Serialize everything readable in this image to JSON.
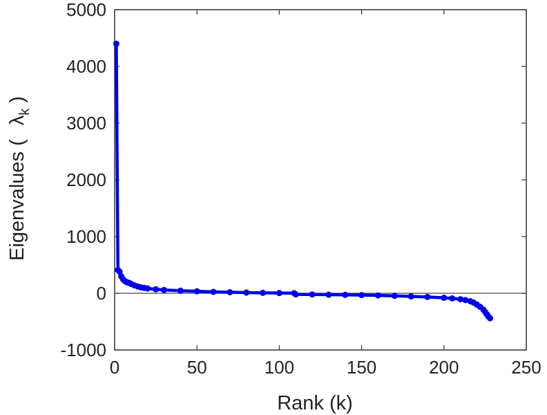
{
  "chart_data": {
    "type": "line",
    "xlabel": "Rank (k)",
    "ylabel": {
      "prefix": "Eigenvalues (",
      "symbol": "λ",
      "subscript": "k",
      "suffix": ")"
    },
    "xlim": [
      0,
      250
    ],
    "ylim": [
      -1000,
      5000
    ],
    "xticks": [
      0,
      50,
      100,
      150,
      200,
      250
    ],
    "yticks": [
      -1000,
      0,
      1000,
      2000,
      3000,
      4000,
      5000
    ],
    "zero_line": true,
    "grid": false,
    "series": [
      {
        "color": "#0000ee",
        "marker": "circle",
        "x": [
          1,
          2,
          3,
          4,
          5,
          6,
          7,
          8,
          9,
          10,
          12,
          14,
          16,
          18,
          20,
          25,
          30,
          40,
          50,
          60,
          70,
          80,
          90,
          100,
          109,
          110,
          120,
          130,
          140,
          150,
          160,
          170,
          180,
          190,
          200,
          205,
          210,
          213,
          216,
          218,
          220,
          222,
          224,
          225,
          226,
          227,
          228
        ],
        "y": [
          4400,
          410,
          380,
          300,
          250,
          220,
          200,
          190,
          180,
          165,
          140,
          120,
          105,
          95,
          85,
          70,
          58,
          45,
          35,
          25,
          18,
          12,
          8,
          4,
          2,
          -20,
          -22,
          -25,
          -28,
          -32,
          -38,
          -45,
          -55,
          -65,
          -80,
          -90,
          -105,
          -120,
          -140,
          -165,
          -200,
          -240,
          -290,
          -330,
          -370,
          -410,
          -440
        ]
      }
    ]
  }
}
